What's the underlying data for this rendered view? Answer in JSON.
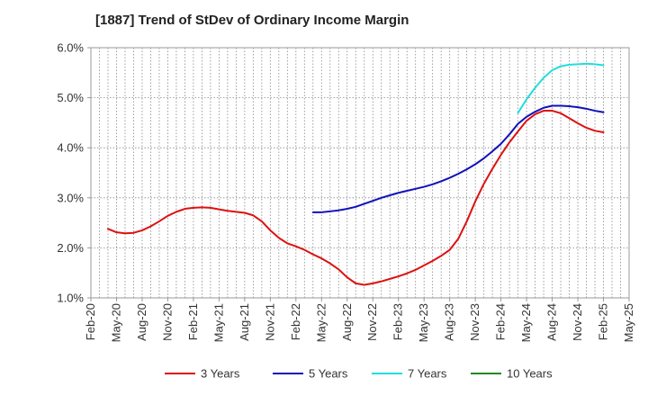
{
  "chart_data": {
    "type": "line",
    "title": "[1887]  Trend of StDev of Ordinary Income Margin",
    "x_tick_labels": [
      "Feb-20",
      "May-20",
      "Aug-20",
      "Nov-20",
      "Feb-21",
      "May-21",
      "Aug-21",
      "Nov-21",
      "Feb-22",
      "May-22",
      "Aug-22",
      "Nov-22",
      "Feb-23",
      "May-23",
      "Aug-23",
      "Nov-23",
      "Feb-24",
      "May-24",
      "Aug-24",
      "Nov-24",
      "Feb-25",
      "May-25"
    ],
    "y_tick_labels": [
      "1.0%",
      "2.0%",
      "3.0%",
      "4.0%",
      "5.0%",
      "6.0%"
    ],
    "y_ticks": [
      1.0,
      2.0,
      3.0,
      4.0,
      5.0,
      6.0
    ],
    "ylim": [
      1.0,
      6.0
    ],
    "x_range_months": [
      "2020-02",
      "2025-05"
    ],
    "grid": true,
    "legend_position": "bottom",
    "series": [
      {
        "name": "3 Years",
        "color": "#dd1111",
        "points": [
          [
            "2020-04",
            2.38
          ],
          [
            "2020-05",
            2.31
          ],
          [
            "2020-06",
            2.29
          ],
          [
            "2020-07",
            2.3
          ],
          [
            "2020-08",
            2.35
          ],
          [
            "2020-09",
            2.43
          ],
          [
            "2020-10",
            2.53
          ],
          [
            "2020-11",
            2.64
          ],
          [
            "2020-12",
            2.72
          ],
          [
            "2021-01",
            2.78
          ],
          [
            "2021-02",
            2.8
          ],
          [
            "2021-03",
            2.81
          ],
          [
            "2021-04",
            2.8
          ],
          [
            "2021-05",
            2.77
          ],
          [
            "2021-06",
            2.74
          ],
          [
            "2021-07",
            2.72
          ],
          [
            "2021-08",
            2.7
          ],
          [
            "2021-09",
            2.65
          ],
          [
            "2021-10",
            2.53
          ],
          [
            "2021-11",
            2.35
          ],
          [
            "2021-12",
            2.2
          ],
          [
            "2022-01",
            2.09
          ],
          [
            "2022-02",
            2.03
          ],
          [
            "2022-03",
            1.96
          ],
          [
            "2022-04",
            1.87
          ],
          [
            "2022-05",
            1.79
          ],
          [
            "2022-06",
            1.69
          ],
          [
            "2022-07",
            1.57
          ],
          [
            "2022-08",
            1.41
          ],
          [
            "2022-09",
            1.29
          ],
          [
            "2022-10",
            1.26
          ],
          [
            "2022-11",
            1.29
          ],
          [
            "2022-12",
            1.33
          ],
          [
            "2023-01",
            1.38
          ],
          [
            "2023-02",
            1.43
          ],
          [
            "2023-03",
            1.49
          ],
          [
            "2023-04",
            1.56
          ],
          [
            "2023-05",
            1.65
          ],
          [
            "2023-06",
            1.74
          ],
          [
            "2023-07",
            1.84
          ],
          [
            "2023-08",
            1.96
          ],
          [
            "2023-09",
            2.18
          ],
          [
            "2023-10",
            2.53
          ],
          [
            "2023-11",
            2.93
          ],
          [
            "2023-12",
            3.28
          ],
          [
            "2024-01",
            3.58
          ],
          [
            "2024-02",
            3.86
          ],
          [
            "2024-03",
            4.11
          ],
          [
            "2024-04",
            4.33
          ],
          [
            "2024-05",
            4.54
          ],
          [
            "2024-06",
            4.67
          ],
          [
            "2024-07",
            4.74
          ],
          [
            "2024-08",
            4.74
          ],
          [
            "2024-09",
            4.69
          ],
          [
            "2024-10",
            4.59
          ],
          [
            "2024-11",
            4.49
          ],
          [
            "2024-12",
            4.4
          ],
          [
            "2025-01",
            4.34
          ],
          [
            "2025-02",
            4.31
          ]
        ]
      },
      {
        "name": "5 Years",
        "color": "#1111bb",
        "points": [
          [
            "2022-04",
            2.71
          ],
          [
            "2022-05",
            2.71
          ],
          [
            "2022-06",
            2.73
          ],
          [
            "2022-07",
            2.75
          ],
          [
            "2022-08",
            2.78
          ],
          [
            "2022-09",
            2.82
          ],
          [
            "2022-10",
            2.88
          ],
          [
            "2022-11",
            2.94
          ],
          [
            "2022-12",
            3.0
          ],
          [
            "2023-01",
            3.05
          ],
          [
            "2023-02",
            3.1
          ],
          [
            "2023-03",
            3.14
          ],
          [
            "2023-04",
            3.18
          ],
          [
            "2023-05",
            3.22
          ],
          [
            "2023-06",
            3.27
          ],
          [
            "2023-07",
            3.33
          ],
          [
            "2023-08",
            3.4
          ],
          [
            "2023-09",
            3.48
          ],
          [
            "2023-10",
            3.57
          ],
          [
            "2023-11",
            3.67
          ],
          [
            "2023-12",
            3.79
          ],
          [
            "2024-01",
            3.93
          ],
          [
            "2024-02",
            4.08
          ],
          [
            "2024-03",
            4.27
          ],
          [
            "2024-04",
            4.48
          ],
          [
            "2024-05",
            4.62
          ],
          [
            "2024-06",
            4.72
          ],
          [
            "2024-07",
            4.8
          ],
          [
            "2024-08",
            4.84
          ],
          [
            "2024-09",
            4.84
          ],
          [
            "2024-10",
            4.83
          ],
          [
            "2024-11",
            4.81
          ],
          [
            "2024-12",
            4.78
          ],
          [
            "2025-01",
            4.74
          ],
          [
            "2025-02",
            4.71
          ]
        ]
      },
      {
        "name": "7 Years",
        "color": "#22dddd",
        "points": [
          [
            "2024-04",
            4.7
          ],
          [
            "2024-05",
            4.97
          ],
          [
            "2024-06",
            5.2
          ],
          [
            "2024-07",
            5.4
          ],
          [
            "2024-08",
            5.55
          ],
          [
            "2024-09",
            5.63
          ],
          [
            "2024-10",
            5.66
          ],
          [
            "2024-11",
            5.67
          ],
          [
            "2024-12",
            5.68
          ],
          [
            "2025-01",
            5.67
          ],
          [
            "2025-02",
            5.65
          ]
        ]
      },
      {
        "name": "10 Years",
        "color": "#228822",
        "points": []
      }
    ]
  }
}
